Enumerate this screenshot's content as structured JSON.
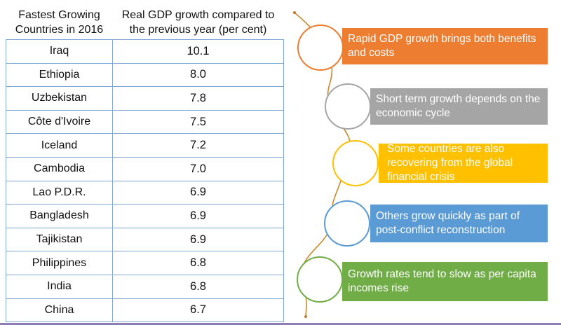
{
  "table": {
    "headers": [
      "Fastest Growing Countries in 2016",
      "Real GDP growth compared to the previous year (per cent)"
    ],
    "rows": [
      {
        "country": "Iraq",
        "growth": "10.1"
      },
      {
        "country": "Ethiopia",
        "growth": "8.0"
      },
      {
        "country": "Uzbekistan",
        "growth": "7.8"
      },
      {
        "country": "Côte d'Ivoire",
        "growth": "7.5"
      },
      {
        "country": "Iceland",
        "growth": "7.2"
      },
      {
        "country": "Cambodia",
        "growth": "7.0"
      },
      {
        "country": "Lao P.D.R.",
        "growth": "6.9"
      },
      {
        "country": "Bangladesh",
        "growth": "6.9"
      },
      {
        "country": "Tajikistan",
        "growth": "6.9"
      },
      {
        "country": "Philippines",
        "growth": "6.8"
      },
      {
        "country": "India",
        "growth": "6.8"
      },
      {
        "country": "China",
        "growth": "6.7"
      }
    ]
  },
  "timeline": {
    "items": [
      {
        "text": "Rapid GDP growth brings both benefits and costs",
        "color": "#ed7d31"
      },
      {
        "text": "Short term growth depends on the economic cycle",
        "color": "#a5a5a5"
      },
      {
        "text": "Some countries are also recovering from the global financial crisis",
        "color": "#ffc000"
      },
      {
        "text": "Others grow quickly as part of post-conflict reconstruction",
        "color": "#5b9bd5"
      },
      {
        "text": "Growth rates tend to slow as per capita incomes rise",
        "color": "#70ad47"
      }
    ]
  }
}
